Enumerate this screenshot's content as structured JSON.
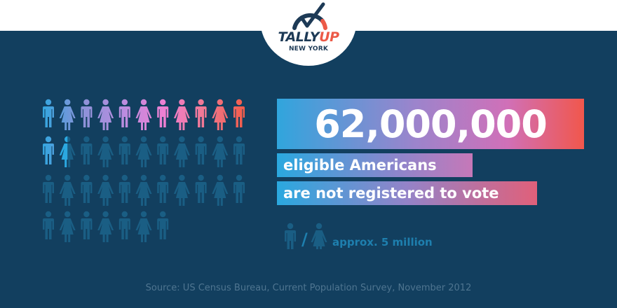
{
  "logo": {
    "tally_part1": "TALLY",
    "tally_part2": "UP",
    "subtitle": "NEW YORK",
    "icon": "gauge-checkmark-icon",
    "colors": {
      "navy": "#1d3a56",
      "orange": "#ec5a47"
    }
  },
  "pictogram": {
    "icons": [
      "male-person-icon",
      "female-person-icon"
    ],
    "total_icons": 40,
    "filled_icons": 12.5,
    "per_icon_value": "5 million",
    "filled_gradient": [
      "#2ba8e0",
      "#8a92d8",
      "#b98de0",
      "#ee7fd2",
      "#f0788f",
      "#f25a44"
    ],
    "unfilled_color": "#1a5e84"
  },
  "headline": {
    "number": "62,000,000",
    "line1": "eligible Americans",
    "line2": "are not registered to vote"
  },
  "legend": {
    "separator": "/",
    "text": "approx. 5 million"
  },
  "source": "Source: US Census Bureau, Current Population Survey, November 2012"
}
